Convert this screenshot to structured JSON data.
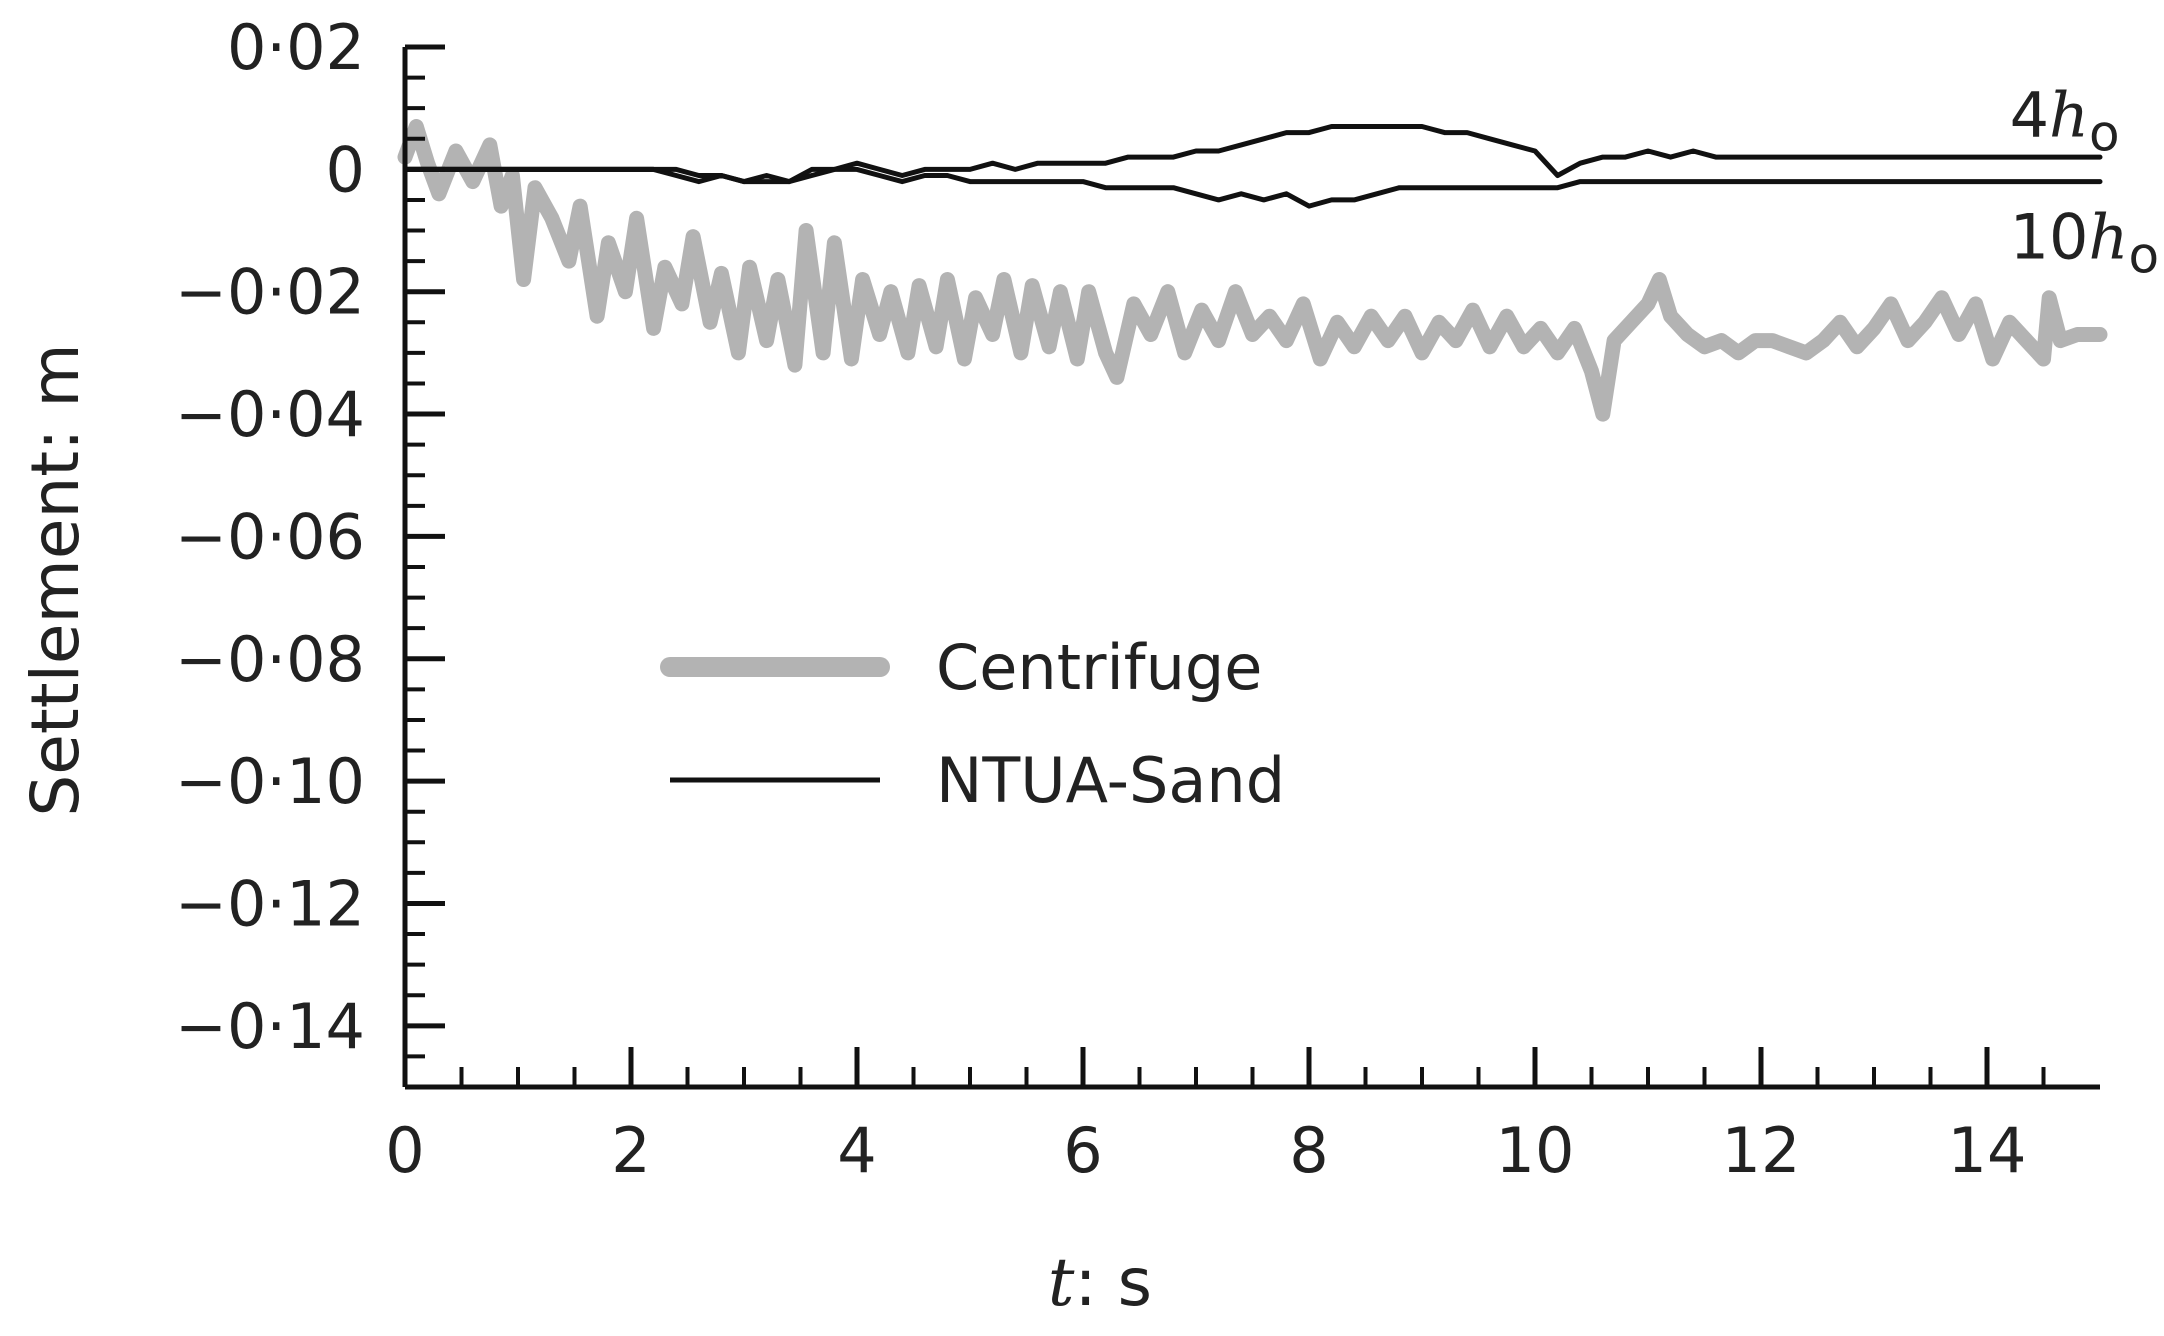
{
  "chart_data": {
    "type": "line",
    "title": "",
    "xlabel_var": "t",
    "xlabel_unit": ": s",
    "ylabel": "Settlement: m",
    "xlim": [
      0,
      15
    ],
    "ylim": [
      -0.15,
      0.02
    ],
    "x_ticks": [
      0,
      2,
      4,
      6,
      8,
      10,
      12,
      14
    ],
    "x_tick_labels": [
      "0",
      "2",
      "4",
      "6",
      "8",
      "10",
      "12",
      "14"
    ],
    "y_ticks": [
      0.02,
      0,
      -0.02,
      -0.04,
      -0.06,
      -0.08,
      -0.1,
      -0.12,
      -0.14
    ],
    "y_tick_labels": [
      "0·02",
      "0",
      "−0·02",
      "−0·04",
      "−0·06",
      "−0·08",
      "−0·10",
      "−0·12",
      "−0·14"
    ],
    "grid": false,
    "legend_placement": "center-left",
    "legend": [
      {
        "label": "Centrifuge",
        "color": "#b3b3b3",
        "width": "thick"
      },
      {
        "label": "NTUA-Sand",
        "color": "#111111",
        "width": "thin"
      }
    ],
    "annotations": [
      {
        "num": "4",
        "var": "h",
        "sub": "o",
        "x": 14.2,
        "y": 0.009
      },
      {
        "num": "10",
        "var": "h",
        "sub": "o",
        "x": 14.2,
        "y": -0.011
      }
    ],
    "series": [
      {
        "group": "Centrifuge",
        "color": "#b3b3b3",
        "x": [
          0,
          0.1,
          0.2,
          0.3,
          0.45,
          0.6,
          0.75,
          0.85,
          0.95,
          1.05,
          1.15,
          1.3,
          1.45,
          1.55,
          1.7,
          1.8,
          1.95,
          2.05,
          2.2,
          2.3,
          2.45,
          2.55,
          2.7,
          2.8,
          2.95,
          3.05,
          3.2,
          3.3,
          3.45,
          3.55,
          3.7,
          3.8,
          3.95,
          4.05,
          4.2,
          4.3,
          4.45,
          4.55,
          4.7,
          4.8,
          4.95,
          5.05,
          5.2,
          5.3,
          5.45,
          5.55,
          5.7,
          5.8,
          5.95,
          6.05,
          6.2,
          6.3,
          6.45,
          6.6,
          6.75,
          6.9,
          7.05,
          7.2,
          7.35,
          7.5,
          7.65,
          7.8,
          7.95,
          8.1,
          8.25,
          8.4,
          8.55,
          8.7,
          8.85,
          9.0,
          9.15,
          9.3,
          9.45,
          9.6,
          9.75,
          9.9,
          10.05,
          10.2,
          10.35,
          10.5,
          10.6,
          10.7,
          10.85,
          11.0,
          11.1,
          11.2,
          11.35,
          11.5,
          11.65,
          11.8,
          11.95,
          12.1,
          12.25,
          12.4,
          12.55,
          12.7,
          12.85,
          13.0,
          13.15,
          13.3,
          13.45,
          13.6,
          13.75,
          13.9,
          14.05,
          14.2,
          14.35,
          14.5,
          14.55,
          14.65,
          14.8,
          15.0
        ],
        "y": [
          0.002,
          0.007,
          0.001,
          -0.004,
          0.003,
          -0.002,
          0.004,
          -0.006,
          -0.001,
          -0.018,
          -0.003,
          -0.008,
          -0.015,
          -0.006,
          -0.024,
          -0.012,
          -0.02,
          -0.008,
          -0.026,
          -0.016,
          -0.022,
          -0.011,
          -0.025,
          -0.017,
          -0.03,
          -0.016,
          -0.028,
          -0.018,
          -0.032,
          -0.01,
          -0.03,
          -0.012,
          -0.031,
          -0.018,
          -0.027,
          -0.02,
          -0.03,
          -0.019,
          -0.029,
          -0.018,
          -0.031,
          -0.021,
          -0.027,
          -0.018,
          -0.03,
          -0.019,
          -0.029,
          -0.02,
          -0.031,
          -0.02,
          -0.03,
          -0.034,
          -0.022,
          -0.027,
          -0.02,
          -0.03,
          -0.023,
          -0.028,
          -0.02,
          -0.027,
          -0.024,
          -0.028,
          -0.022,
          -0.031,
          -0.025,
          -0.029,
          -0.024,
          -0.028,
          -0.024,
          -0.03,
          -0.025,
          -0.028,
          -0.023,
          -0.029,
          -0.024,
          -0.029,
          -0.026,
          -0.03,
          -0.026,
          -0.033,
          -0.04,
          -0.028,
          -0.025,
          -0.022,
          -0.018,
          -0.024,
          -0.027,
          -0.029,
          -0.028,
          -0.03,
          -0.028,
          -0.028,
          -0.029,
          -0.03,
          -0.028,
          -0.025,
          -0.029,
          -0.026,
          -0.022,
          -0.028,
          -0.025,
          -0.021,
          -0.027,
          -0.022,
          -0.031,
          -0.025,
          -0.028,
          -0.031,
          -0.021,
          -0.028,
          -0.027,
          -0.027
        ]
      },
      {
        "group": "NTUA-Sand",
        "color": "#111111",
        "x": [
          0,
          2.2,
          2.4,
          2.6,
          2.8,
          3.0,
          3.2,
          3.4,
          3.6,
          3.8,
          4.0,
          4.2,
          4.4,
          4.6,
          4.8,
          5.0,
          5.2,
          5.4,
          5.6,
          5.8,
          6.0,
          6.2,
          6.4,
          6.6,
          6.8,
          7.0,
          7.2,
          7.4,
          7.6,
          7.8,
          8.0,
          8.2,
          8.4,
          8.6,
          8.8,
          9.0,
          9.2,
          9.4,
          9.6,
          9.8,
          10.0,
          10.2,
          10.4,
          10.6,
          10.8,
          11.0,
          11.2,
          11.4,
          11.6,
          11.8,
          12.0,
          13.0,
          14.0,
          15.0
        ],
        "y": [
          0,
          0,
          -0.001,
          -0.002,
          -0.001,
          -0.002,
          -0.001,
          -0.002,
          0.0,
          0.0,
          0.001,
          0.0,
          -0.001,
          0.0,
          0.0,
          0.0,
          0.001,
          0.0,
          0.001,
          0.001,
          0.001,
          0.001,
          0.002,
          0.002,
          0.002,
          0.003,
          0.003,
          0.004,
          0.005,
          0.006,
          0.006,
          0.007,
          0.007,
          0.007,
          0.007,
          0.007,
          0.006,
          0.006,
          0.005,
          0.004,
          0.003,
          -0.001,
          0.001,
          0.002,
          0.002,
          0.003,
          0.002,
          0.003,
          0.002,
          0.002,
          0.002,
          0.002,
          0.002,
          0.002
        ]
      },
      {
        "group": "NTUA-Sand",
        "color": "#111111",
        "x": [
          0,
          2.2,
          2.4,
          2.6,
          2.8,
          3.0,
          3.2,
          3.4,
          3.6,
          3.8,
          4.0,
          4.2,
          4.4,
          4.6,
          4.8,
          5.0,
          5.2,
          5.4,
          5.6,
          5.8,
          6.0,
          6.2,
          6.4,
          6.6,
          6.8,
          7.0,
          7.2,
          7.4,
          7.6,
          7.8,
          8.0,
          8.2,
          8.4,
          8.6,
          8.8,
          9.0,
          9.2,
          9.4,
          9.6,
          9.8,
          10.0,
          10.2,
          10.4,
          10.6,
          10.8,
          11.0,
          11.2,
          11.4,
          11.6,
          11.8,
          12.0,
          13.0,
          14.0,
          15.0
        ],
        "y": [
          0,
          0,
          0.0,
          -0.001,
          -0.001,
          -0.002,
          -0.002,
          -0.002,
          -0.001,
          0.0,
          0.0,
          -0.001,
          -0.002,
          -0.001,
          -0.001,
          -0.002,
          -0.002,
          -0.002,
          -0.002,
          -0.002,
          -0.002,
          -0.003,
          -0.003,
          -0.003,
          -0.003,
          -0.004,
          -0.005,
          -0.004,
          -0.005,
          -0.004,
          -0.006,
          -0.005,
          -0.005,
          -0.004,
          -0.003,
          -0.003,
          -0.003,
          -0.003,
          -0.003,
          -0.003,
          -0.003,
          -0.003,
          -0.002,
          -0.002,
          -0.002,
          -0.002,
          -0.002,
          -0.002,
          -0.002,
          -0.002,
          -0.002,
          -0.002,
          -0.002,
          -0.002
        ]
      }
    ]
  }
}
